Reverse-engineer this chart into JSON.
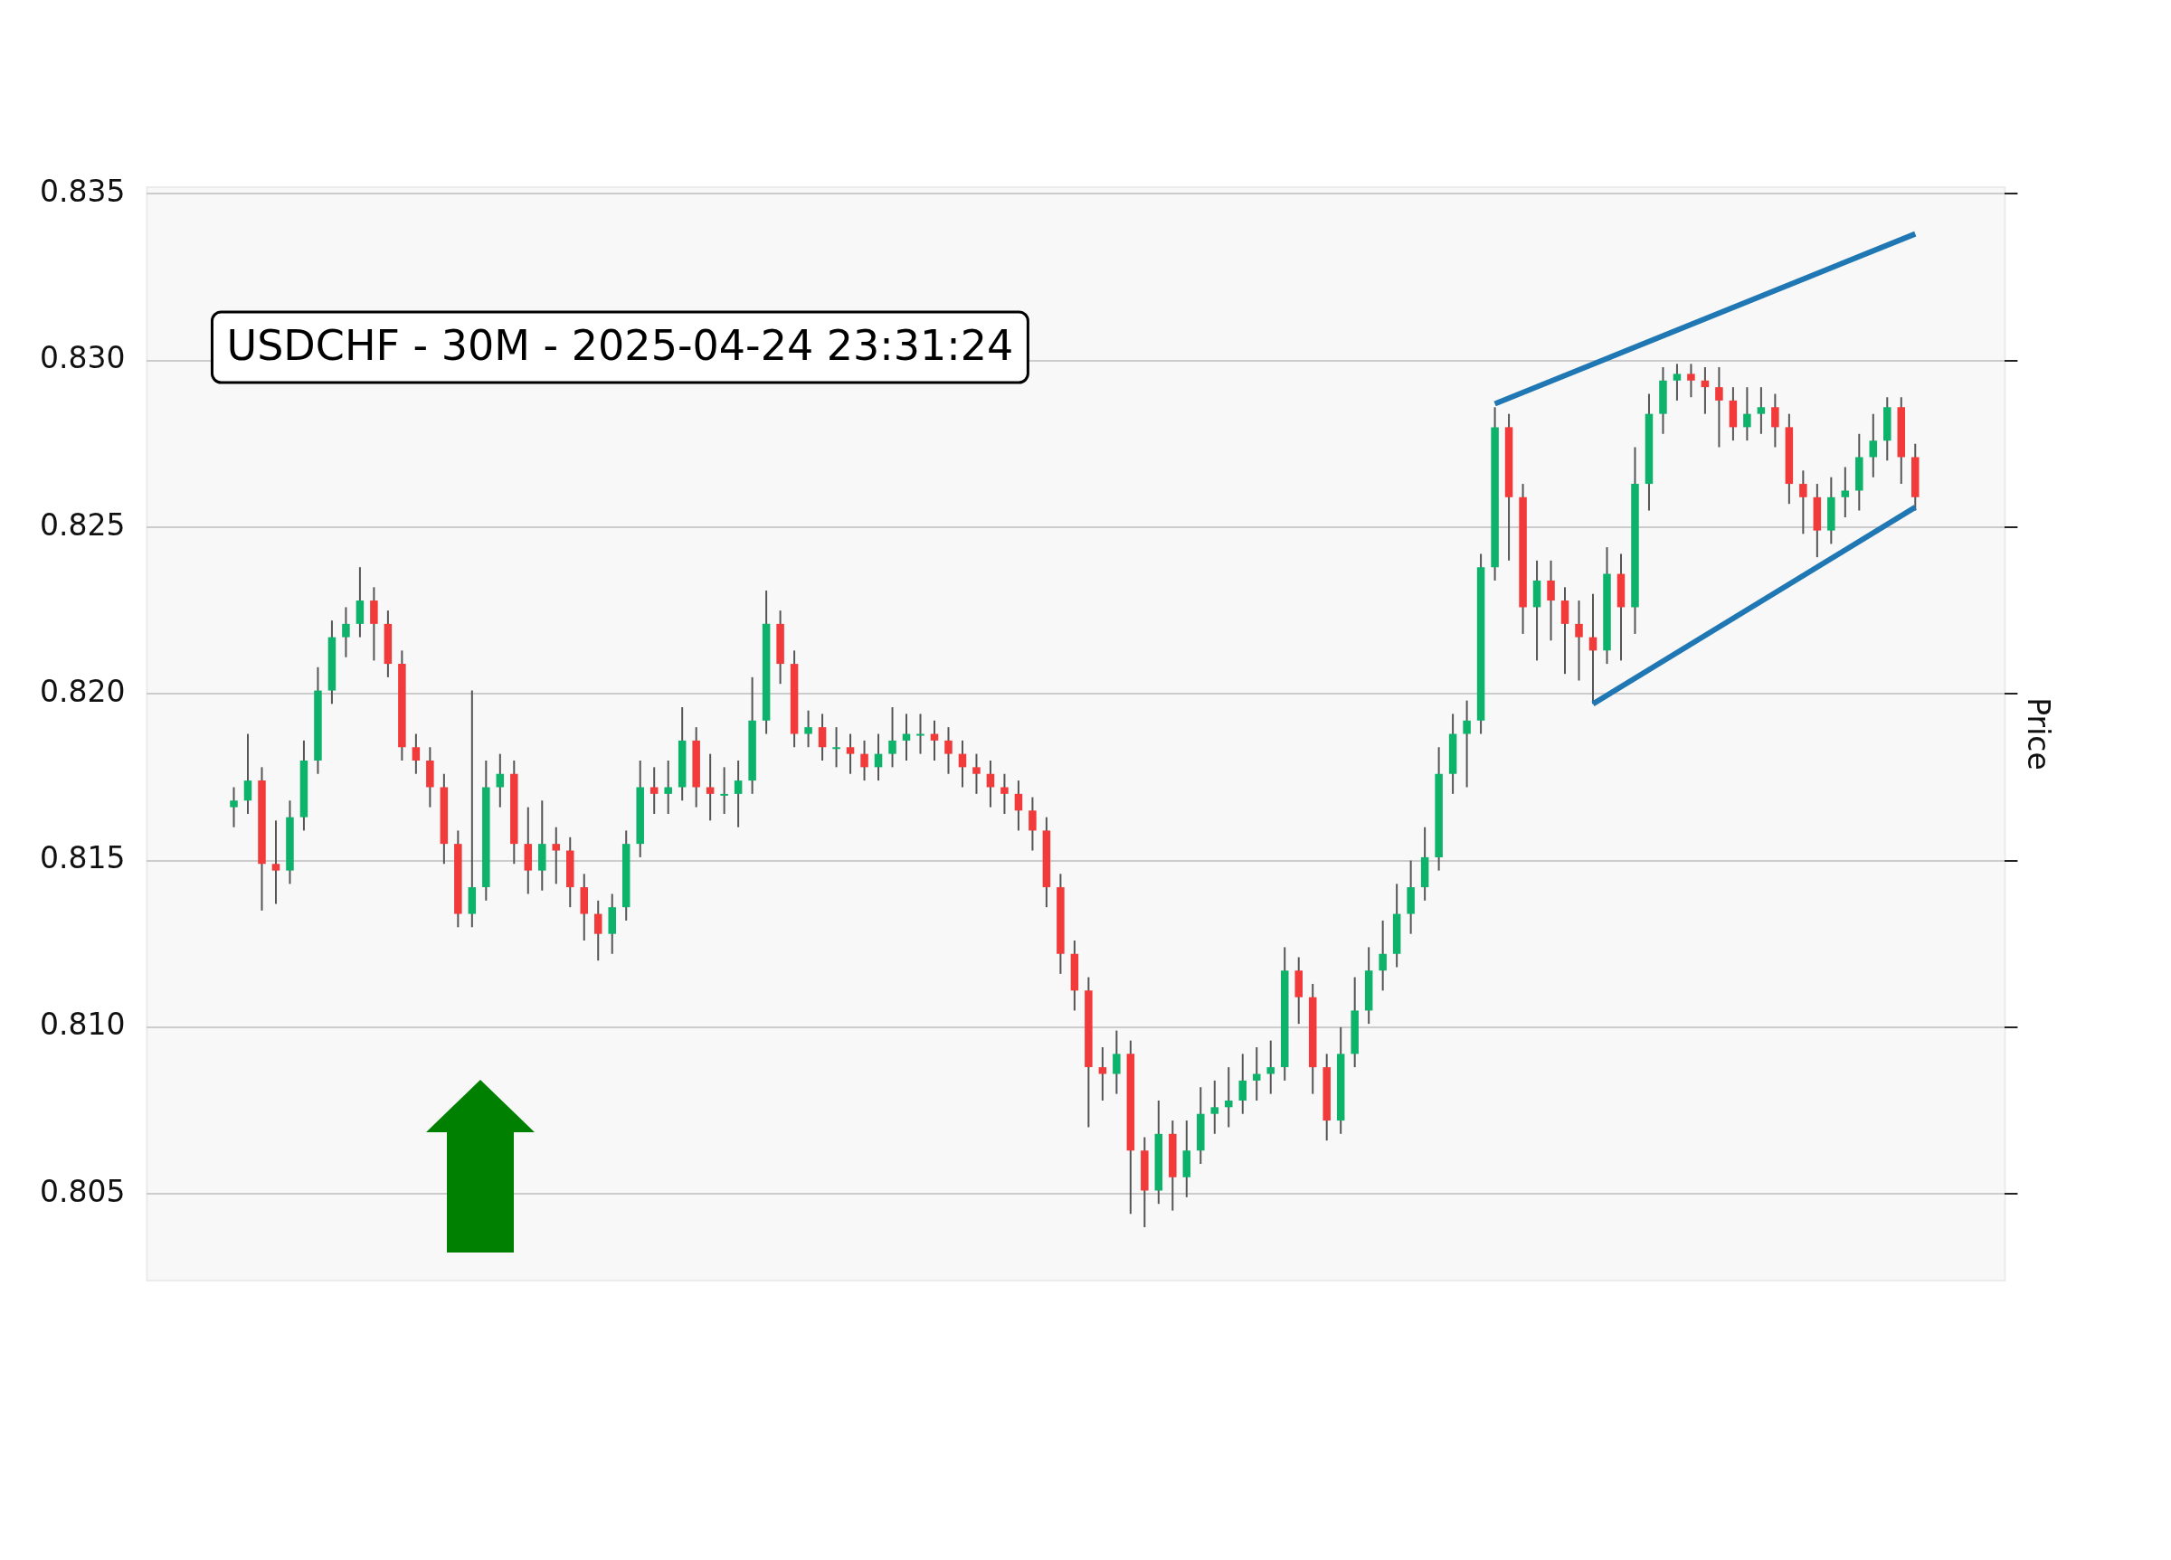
{
  "chart_data": {
    "type": "candlestick",
    "title": "USDCHF - 30M - 2025-04-24 23:31:24",
    "ylabel": "Price",
    "categories": [
      null,
      null,
      null,
      null,
      null,
      null,
      null,
      null,
      null,
      null,
      null,
      null,
      null,
      null,
      null,
      null,
      null,
      null,
      null,
      null,
      null,
      null,
      null,
      null,
      null,
      null,
      null,
      null,
      null,
      null,
      null,
      null,
      null,
      null,
      null,
      null,
      null,
      null,
      null,
      null,
      null,
      null,
      null,
      null,
      null,
      null,
      null,
      null,
      null,
      null,
      null,
      null,
      null,
      null,
      null,
      null,
      null,
      null,
      null,
      null,
      null,
      null,
      null,
      null,
      null,
      null,
      null,
      null,
      null,
      null,
      null,
      null,
      null,
      null,
      null,
      null,
      null,
      null,
      null,
      null,
      null,
      null,
      null,
      null,
      null,
      null,
      null,
      null,
      null,
      null,
      null,
      null,
      null,
      null,
      null,
      null,
      null,
      null,
      null,
      null,
      null,
      null,
      null,
      null,
      null,
      null,
      null,
      null,
      null,
      null,
      null,
      null,
      null,
      null,
      null,
      null,
      null,
      null,
      null,
      null,
      null
    ],
    "ohlc": [
      [
        0.8166,
        0.8172,
        0.816,
        0.8168
      ],
      [
        0.8168,
        0.8188,
        0.8164,
        0.8174
      ],
      [
        0.8174,
        0.8178,
        0.8135,
        0.8149
      ],
      [
        0.8149,
        0.8162,
        0.8137,
        0.8147
      ],
      [
        0.8147,
        0.8168,
        0.8143,
        0.8163
      ],
      [
        0.8163,
        0.8186,
        0.8159,
        0.818
      ],
      [
        0.818,
        0.8208,
        0.8176,
        0.8201
      ],
      [
        0.8201,
        0.8222,
        0.8197,
        0.8217
      ],
      [
        0.8217,
        0.8226,
        0.8211,
        0.8221
      ],
      [
        0.8221,
        0.8238,
        0.8217,
        0.8228
      ],
      [
        0.8228,
        0.8232,
        0.821,
        0.8221
      ],
      [
        0.8221,
        0.8225,
        0.8205,
        0.8209
      ],
      [
        0.8209,
        0.8213,
        0.818,
        0.8184
      ],
      [
        0.8184,
        0.8188,
        0.8176,
        0.818
      ],
      [
        0.818,
        0.8184,
        0.8166,
        0.8172
      ],
      [
        0.8172,
        0.8176,
        0.8149,
        0.8155
      ],
      [
        0.8155,
        0.8159,
        0.813,
        0.8134
      ],
      [
        0.8134,
        0.8201,
        0.813,
        0.8142
      ],
      [
        0.8142,
        0.818,
        0.8138,
        0.8172
      ],
      [
        0.8172,
        0.8182,
        0.8166,
        0.8176
      ],
      [
        0.8176,
        0.818,
        0.8149,
        0.8155
      ],
      [
        0.8155,
        0.8166,
        0.814,
        0.8147
      ],
      [
        0.8147,
        0.8168,
        0.8141,
        0.8155
      ],
      [
        0.8155,
        0.816,
        0.8143,
        0.8153
      ],
      [
        0.8153,
        0.8157,
        0.8136,
        0.8142
      ],
      [
        0.8142,
        0.8146,
        0.8126,
        0.8134
      ],
      [
        0.8134,
        0.8138,
        0.812,
        0.8128
      ],
      [
        0.8128,
        0.814,
        0.8122,
        0.8136
      ],
      [
        0.8136,
        0.8159,
        0.8132,
        0.8155
      ],
      [
        0.8155,
        0.818,
        0.8151,
        0.8172
      ],
      [
        0.8172,
        0.8178,
        0.8164,
        0.817
      ],
      [
        0.817,
        0.818,
        0.8164,
        0.8172
      ],
      [
        0.8172,
        0.8196,
        0.8168,
        0.8186
      ],
      [
        0.8186,
        0.819,
        0.8166,
        0.8172
      ],
      [
        0.8172,
        0.8182,
        0.8162,
        0.817
      ],
      [
        0.817,
        0.8178,
        0.8164,
        0.817
      ],
      [
        0.817,
        0.818,
        0.816,
        0.8174
      ],
      [
        0.8174,
        0.8205,
        0.817,
        0.8192
      ],
      [
        0.8192,
        0.8231,
        0.8188,
        0.8221
      ],
      [
        0.8221,
        0.8225,
        0.8203,
        0.8209
      ],
      [
        0.8209,
        0.8213,
        0.8184,
        0.8188
      ],
      [
        0.8188,
        0.8195,
        0.8184,
        0.819
      ],
      [
        0.819,
        0.8194,
        0.818,
        0.8184
      ],
      [
        0.8184,
        0.819,
        0.8178,
        0.8184
      ],
      [
        0.8184,
        0.8188,
        0.8176,
        0.8182
      ],
      [
        0.8182,
        0.8186,
        0.8174,
        0.8178
      ],
      [
        0.8178,
        0.8188,
        0.8174,
        0.8182
      ],
      [
        0.8182,
        0.8196,
        0.8178,
        0.8186
      ],
      [
        0.8186,
        0.8194,
        0.818,
        0.8188
      ],
      [
        0.8188,
        0.8194,
        0.8182,
        0.8188
      ],
      [
        0.8188,
        0.8192,
        0.818,
        0.8186
      ],
      [
        0.8186,
        0.819,
        0.8176,
        0.8182
      ],
      [
        0.8182,
        0.8186,
        0.8172,
        0.8178
      ],
      [
        0.8178,
        0.8182,
        0.817,
        0.8176
      ],
      [
        0.8176,
        0.818,
        0.8166,
        0.8172
      ],
      [
        0.8172,
        0.8176,
        0.8164,
        0.817
      ],
      [
        0.817,
        0.8174,
        0.8159,
        0.8165
      ],
      [
        0.8165,
        0.8169,
        0.8153,
        0.8159
      ],
      [
        0.8159,
        0.8163,
        0.8136,
        0.8142
      ],
      [
        0.8142,
        0.8146,
        0.8116,
        0.8122
      ],
      [
        0.8122,
        0.8126,
        0.8105,
        0.8111
      ],
      [
        0.8111,
        0.8115,
        0.807,
        0.8088
      ],
      [
        0.8088,
        0.8094,
        0.8078,
        0.8086
      ],
      [
        0.8086,
        0.8099,
        0.808,
        0.8092
      ],
      [
        0.8092,
        0.8096,
        0.8044,
        0.8063
      ],
      [
        0.8063,
        0.8067,
        0.804,
        0.8051
      ],
      [
        0.8051,
        0.8078,
        0.8047,
        0.8068
      ],
      [
        0.8068,
        0.8072,
        0.8045,
        0.8055
      ],
      [
        0.8055,
        0.8072,
        0.8049,
        0.8063
      ],
      [
        0.8063,
        0.8082,
        0.8059,
        0.8074
      ],
      [
        0.8074,
        0.8084,
        0.8068,
        0.8076
      ],
      [
        0.8076,
        0.8088,
        0.807,
        0.8078
      ],
      [
        0.8078,
        0.8092,
        0.8074,
        0.8084
      ],
      [
        0.8084,
        0.8094,
        0.8078,
        0.8086
      ],
      [
        0.8086,
        0.8096,
        0.808,
        0.8088
      ],
      [
        0.8088,
        0.8124,
        0.8084,
        0.8117
      ],
      [
        0.8117,
        0.8121,
        0.8101,
        0.8109
      ],
      [
        0.8109,
        0.8113,
        0.808,
        0.8088
      ],
      [
        0.8088,
        0.8092,
        0.8066,
        0.8072
      ],
      [
        0.8072,
        0.81,
        0.8068,
        0.8092
      ],
      [
        0.8092,
        0.8115,
        0.8088,
        0.8105
      ],
      [
        0.8105,
        0.8124,
        0.8101,
        0.8117
      ],
      [
        0.8117,
        0.8132,
        0.8111,
        0.8122
      ],
      [
        0.8122,
        0.8143,
        0.8118,
        0.8134
      ],
      [
        0.8134,
        0.815,
        0.8128,
        0.8142
      ],
      [
        0.8142,
        0.816,
        0.8138,
        0.8151
      ],
      [
        0.8151,
        0.8184,
        0.8147,
        0.8176
      ],
      [
        0.8176,
        0.8194,
        0.817,
        0.8188
      ],
      [
        0.8188,
        0.8198,
        0.8172,
        0.8192
      ],
      [
        0.8192,
        0.8242,
        0.8188,
        0.8238
      ],
      [
        0.8238,
        0.8286,
        0.8234,
        0.828
      ],
      [
        0.828,
        0.8284,
        0.824,
        0.8259
      ],
      [
        0.8259,
        0.8263,
        0.8218,
        0.8226
      ],
      [
        0.8226,
        0.824,
        0.821,
        0.8234
      ],
      [
        0.8234,
        0.824,
        0.8216,
        0.8228
      ],
      [
        0.8228,
        0.8232,
        0.8206,
        0.8221
      ],
      [
        0.8221,
        0.8228,
        0.8204,
        0.8217
      ],
      [
        0.8217,
        0.823,
        0.8197,
        0.8213
      ],
      [
        0.8213,
        0.8244,
        0.8209,
        0.8236
      ],
      [
        0.8236,
        0.8242,
        0.821,
        0.8226
      ],
      [
        0.8226,
        0.8274,
        0.8218,
        0.8263
      ],
      [
        0.8263,
        0.829,
        0.8255,
        0.8284
      ],
      [
        0.8284,
        0.8298,
        0.8278,
        0.8294
      ],
      [
        0.8294,
        0.8299,
        0.8288,
        0.8296
      ],
      [
        0.8296,
        0.8299,
        0.8289,
        0.8294
      ],
      [
        0.8294,
        0.8298,
        0.8284,
        0.8292
      ],
      [
        0.8292,
        0.8298,
        0.8274,
        0.8288
      ],
      [
        0.8288,
        0.8292,
        0.8276,
        0.828
      ],
      [
        0.828,
        0.8292,
        0.8276,
        0.8284
      ],
      [
        0.8284,
        0.8292,
        0.8278,
        0.8286
      ],
      [
        0.8286,
        0.829,
        0.8274,
        0.828
      ],
      [
        0.828,
        0.8284,
        0.8257,
        0.8263
      ],
      [
        0.8263,
        0.8267,
        0.8248,
        0.8259
      ],
      [
        0.8259,
        0.8263,
        0.8241,
        0.8249
      ],
      [
        0.8249,
        0.8265,
        0.8245,
        0.8259
      ],
      [
        0.8259,
        0.8268,
        0.8253,
        0.8261
      ],
      [
        0.8261,
        0.8278,
        0.8255,
        0.8271
      ],
      [
        0.8271,
        0.8284,
        0.8265,
        0.8276
      ],
      [
        0.8276,
        0.8289,
        0.827,
        0.8286
      ],
      [
        0.8286,
        0.8289,
        0.8263,
        0.8271
      ],
      [
        0.8271,
        0.8275,
        0.8255,
        0.8259
      ]
    ],
    "series": [
      {
        "type": "line",
        "color": "#1f77b4",
        "values": [
          null,
          null,
          null,
          null,
          null,
          null,
          null,
          null,
          null,
          null,
          null,
          null,
          null,
          null,
          null,
          null,
          null,
          null,
          null,
          null,
          null,
          null,
          null,
          null,
          null,
          null,
          null,
          null,
          null,
          null,
          null,
          null,
          null,
          null,
          null,
          null,
          null,
          null,
          null,
          null,
          null,
          null,
          null,
          null,
          null,
          null,
          null,
          null,
          null,
          null,
          null,
          null,
          null,
          null,
          null,
          null,
          null,
          null,
          null,
          null,
          null,
          null,
          null,
          null,
          null,
          null,
          null,
          null,
          null,
          null,
          null,
          null,
          null,
          null,
          null,
          null,
          null,
          null,
          null,
          null,
          null,
          null,
          null,
          null,
          null,
          null,
          null,
          null,
          null,
          null,
          0.8287,
          null,
          null,
          null,
          null,
          null,
          null,
          null,
          null,
          null,
          null,
          null,
          null,
          null,
          null,
          null,
          null,
          null,
          null,
          null,
          null,
          null,
          null,
          null,
          null,
          null,
          null,
          null,
          null,
          null,
          0.8338
        ]
      },
      {
        "type": "line",
        "color": "#1f77b4",
        "values": [
          null,
          null,
          null,
          null,
          null,
          null,
          null,
          null,
          null,
          null,
          null,
          null,
          null,
          null,
          null,
          null,
          null,
          null,
          null,
          null,
          null,
          null,
          null,
          null,
          null,
          null,
          null,
          null,
          null,
          null,
          null,
          null,
          null,
          null,
          null,
          null,
          null,
          null,
          null,
          null,
          null,
          null,
          null,
          null,
          null,
          null,
          null,
          null,
          null,
          null,
          null,
          null,
          null,
          null,
          null,
          null,
          null,
          null,
          null,
          null,
          null,
          null,
          null,
          null,
          null,
          null,
          null,
          null,
          null,
          null,
          null,
          null,
          null,
          null,
          null,
          null,
          null,
          null,
          null,
          null,
          null,
          null,
          null,
          null,
          null,
          null,
          null,
          null,
          null,
          null,
          null,
          null,
          null,
          null,
          null,
          null,
          null,
          0.8197,
          null,
          null,
          null,
          null,
          null,
          null,
          null,
          null,
          null,
          null,
          null,
          null,
          null,
          null,
          null,
          null,
          null,
          null,
          null,
          null,
          null,
          null,
          0.8256
        ]
      }
    ],
    "ylim": [
      0.8024,
      0.8352
    ],
    "yticks": [
      0.805,
      {
        "value": 0.81,
        "label": "0.810"
      },
      0.815,
      {
        "value": 0.82,
        "label": "0.820"
      },
      0.825,
      {
        "value": 0.83,
        "label": "0.830"
      },
      0.835
    ],
    "grid": "y"
  }
}
